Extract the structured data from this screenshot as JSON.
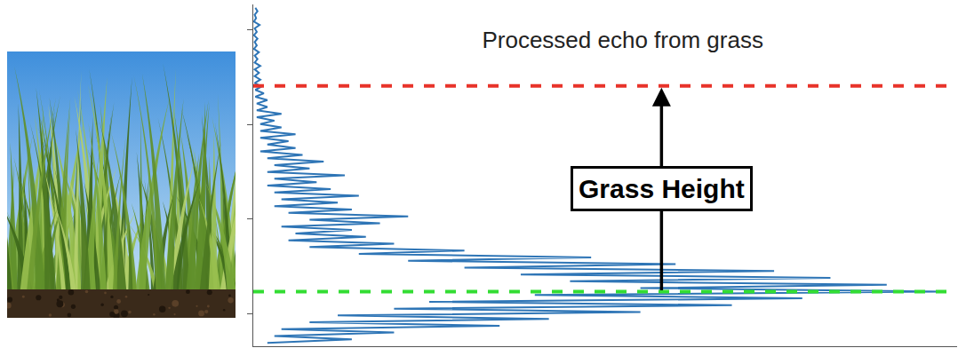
{
  "chart_data": {
    "type": "line",
    "title": "Processed echo from grass",
    "orientation": "horizontal",
    "x": [
      1,
      2,
      3,
      4,
      5,
      6,
      7,
      8,
      9,
      10,
      11,
      12,
      13,
      14,
      15,
      16,
      17,
      18,
      19,
      20,
      21,
      22,
      23,
      24,
      25,
      26,
      27,
      28,
      29,
      30,
      31,
      32,
      33,
      34,
      35,
      36,
      37,
      38,
      39,
      40,
      41,
      42,
      43,
      44,
      45,
      46,
      47,
      48,
      49,
      50,
      51,
      52,
      53,
      54,
      55,
      56,
      57,
      58,
      59,
      60,
      61,
      62,
      63,
      64,
      65,
      66,
      67,
      68,
      69,
      70,
      71,
      72,
      73,
      74,
      75,
      76,
      77,
      78,
      79,
      80,
      81,
      82,
      83,
      84,
      85,
      86,
      87,
      88,
      89,
      90,
      91,
      92,
      93,
      94,
      95,
      96,
      97,
      98,
      99
    ],
    "values": [
      2,
      14,
      3,
      20,
      4,
      35,
      8,
      42,
      12,
      55,
      20,
      68,
      25,
      78,
      40,
      98,
      55,
      90,
      45,
      82,
      38,
      74,
      30,
      60,
      22,
      48,
      15,
      30,
      8,
      20,
      5,
      16,
      6,
      14,
      4,
      18,
      8,
      22,
      5,
      14,
      3,
      12,
      4,
      15,
      3,
      11,
      2,
      9,
      3,
      13,
      2,
      8,
      3,
      10,
      2,
      7,
      1,
      6,
      2,
      5,
      1,
      6,
      1,
      4,
      1,
      3,
      0.5,
      4,
      0.5,
      2,
      0.5,
      2,
      0.3,
      1.5,
      0.3,
      1.2,
      0.2,
      1,
      0.2,
      0.8,
      0.2,
      1,
      0.2,
      0.6,
      0.2,
      0.8,
      0.1,
      0.5,
      0.2,
      0.6,
      0.1,
      0.5,
      0.2,
      0.9,
      0.1,
      0.4,
      0.2,
      0.6,
      0.3
    ],
    "color": "#2e75b6",
    "xlim": [
      0,
      100
    ],
    "xticks": [
      9.6,
      37.2,
      64.9,
      92.5
    ],
    "ylim": [
      0,
      100
    ],
    "yticks": [],
    "grid": false,
    "tick_labels": false,
    "lines": [
      {
        "value": 76.2,
        "color": "#e8332a",
        "line_style": "dashed"
      },
      {
        "value": 16.0,
        "color": "#33dd33",
        "line_style": "dashed"
      }
    ],
    "annotations": [
      {
        "text": "Grass Height",
        "from": 16.0,
        "to": 76.2
      }
    ]
  }
}
